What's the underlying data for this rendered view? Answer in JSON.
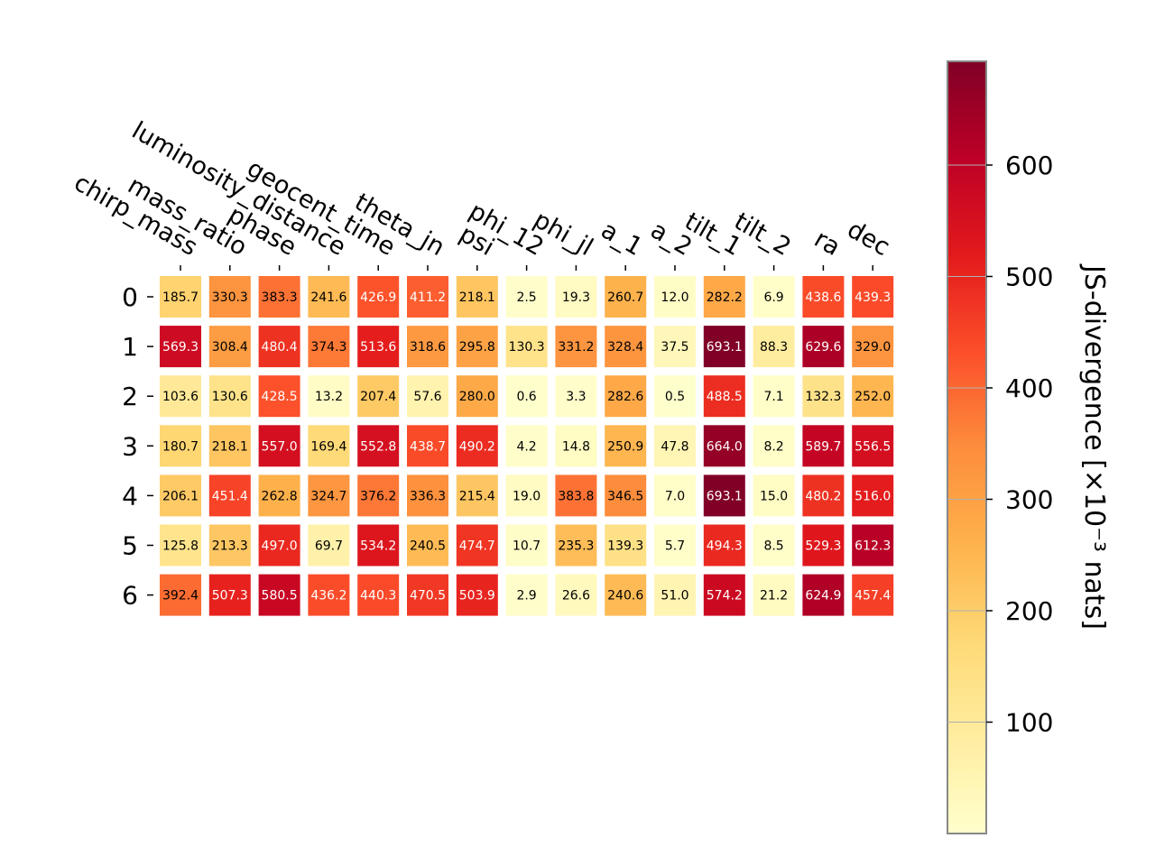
{
  "chart_data": {
    "type": "heatmap",
    "title": "",
    "xlabel": "",
    "ylabel": "",
    "x_labels": [
      "chirp_mass",
      "mass_ratio",
      "phase",
      "luminosity_distance",
      "geocent_time",
      "theta_jn",
      "psi",
      "phi_12",
      "phi_jl",
      "a_1",
      "a_2",
      "tilt_1",
      "tilt_2",
      "ra",
      "dec"
    ],
    "y_labels": [
      "0",
      "1",
      "2",
      "3",
      "4",
      "5",
      "6"
    ],
    "values": [
      [
        185.7,
        330.3,
        383.3,
        241.6,
        426.9,
        411.2,
        218.1,
        2.5,
        19.3,
        260.7,
        12.0,
        282.2,
        6.9,
        438.6,
        439.3
      ],
      [
        569.3,
        308.4,
        480.4,
        374.3,
        513.6,
        318.6,
        295.8,
        130.3,
        331.2,
        328.4,
        37.5,
        693.1,
        88.3,
        629.6,
        329.0
      ],
      [
        103.6,
        130.6,
        428.5,
        13.2,
        207.4,
        57.6,
        280.0,
        0.6,
        3.3,
        282.6,
        0.5,
        488.5,
        7.1,
        132.3,
        252.0
      ],
      [
        180.7,
        218.1,
        557.0,
        169.4,
        552.8,
        438.7,
        490.2,
        4.2,
        14.8,
        250.9,
        47.8,
        664.0,
        8.2,
        589.7,
        556.5
      ],
      [
        206.1,
        451.4,
        262.8,
        324.7,
        376.2,
        336.3,
        215.4,
        19.0,
        383.8,
        346.5,
        7.0,
        693.1,
        15.0,
        480.2,
        516.0
      ],
      [
        125.8,
        213.3,
        497.0,
        69.7,
        534.2,
        240.5,
        474.7,
        10.7,
        235.3,
        139.3,
        5.7,
        494.3,
        8.5,
        529.3,
        612.3
      ],
      [
        392.4,
        507.3,
        580.5,
        436.2,
        440.3,
        470.5,
        503.9,
        2.9,
        26.6,
        240.6,
        51.0,
        574.2,
        21.2,
        624.9,
        457.4
      ]
    ],
    "colormap": "YlOrRd",
    "colorbar": {
      "label": "JS-divergence [×10⁻³ nats]",
      "range": [
        0,
        693.1
      ],
      "ticks": [
        100,
        200,
        300,
        400,
        500,
        600
      ]
    },
    "grid": false
  }
}
